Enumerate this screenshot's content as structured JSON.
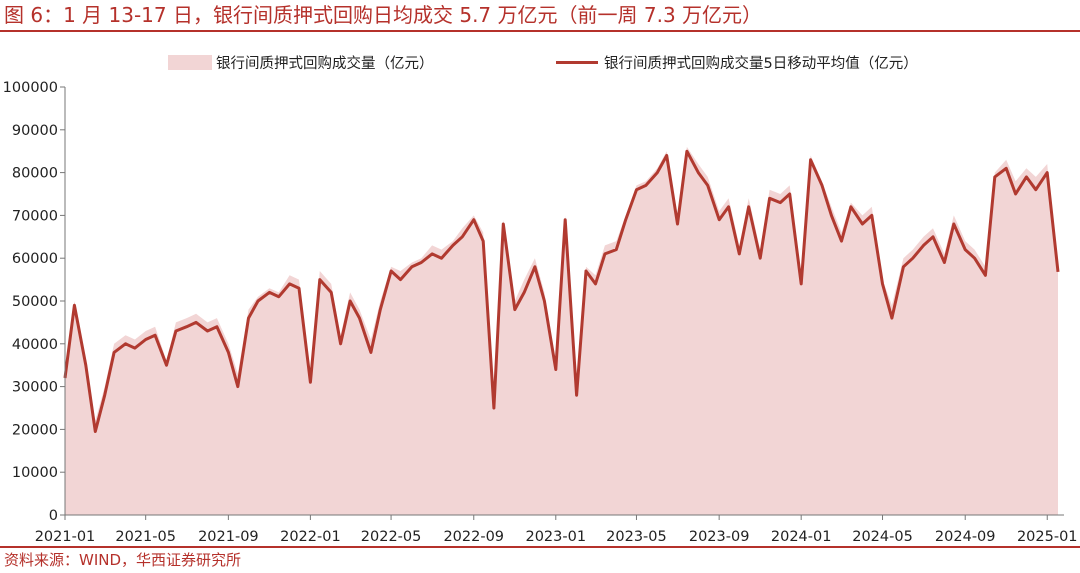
{
  "title": "图 6：1 月 13-17 日，银行间质押式回购日均成交 5.7 万亿元（前一周 7.3 万亿元）",
  "source": "资料来源：WIND，华西证券研究所",
  "colors": {
    "accent": "#b5312b",
    "area": "#f2d5d5",
    "line": "#b13a30"
  },
  "chart_data": {
    "type": "area",
    "title": "图 6：1 月 13-17 日，银行间质押式回购日均成交 5.7 万亿元（前一周 7.3 万亿元）",
    "xlabel": "",
    "ylabel": "",
    "ylim": [
      0,
      100000
    ],
    "yticks": [
      "0",
      "10000",
      "20000",
      "30000",
      "40000",
      "50000",
      "60000",
      "70000",
      "80000",
      "90000",
      "100000"
    ],
    "xticks": [
      "2021-01",
      "2021-05",
      "2021-09",
      "2022-01",
      "2022-05",
      "2022-09",
      "2023-01",
      "2023-05",
      "2023-09",
      "2024-01",
      "2024-05",
      "2024-09",
      "2025-01"
    ],
    "grid": false,
    "legend_position": "top",
    "unit": "亿元",
    "series": [
      {
        "name": "银行间质押式回购成交量（亿元）",
        "style": "area",
        "x": [
          "2021-01",
          "2021-01-15",
          "2021-02",
          "2021-02-15",
          "2021-03",
          "2021-03-15",
          "2021-04",
          "2021-04-15",
          "2021-05",
          "2021-05-15",
          "2021-06",
          "2021-06-15",
          "2021-07",
          "2021-07-15",
          "2021-08",
          "2021-08-15",
          "2021-09",
          "2021-09-15",
          "2021-10",
          "2021-10-15",
          "2021-11",
          "2021-11-15",
          "2021-12",
          "2021-12-15",
          "2022-01",
          "2022-01-15",
          "2022-02",
          "2022-02-15",
          "2022-03",
          "2022-03-15",
          "2022-04",
          "2022-04-15",
          "2022-05",
          "2022-05-15",
          "2022-06",
          "2022-06-15",
          "2022-07",
          "2022-07-15",
          "2022-08",
          "2022-08-15",
          "2022-09",
          "2022-09-15",
          "2022-10",
          "2022-10-15",
          "2022-11",
          "2022-11-15",
          "2022-12",
          "2022-12-15",
          "2023-01",
          "2023-01-15",
          "2023-02",
          "2023-02-15",
          "2023-03",
          "2023-03-15",
          "2023-04",
          "2023-04-15",
          "2023-05",
          "2023-05-15",
          "2023-06",
          "2023-06-15",
          "2023-07",
          "2023-07-15",
          "2023-08",
          "2023-08-15",
          "2023-09",
          "2023-09-15",
          "2023-10",
          "2023-10-15",
          "2023-11",
          "2023-11-15",
          "2023-12",
          "2023-12-15",
          "2024-01",
          "2024-01-15",
          "2024-02",
          "2024-02-15",
          "2024-03",
          "2024-03-15",
          "2024-04",
          "2024-04-15",
          "2024-05",
          "2024-05-15",
          "2024-06",
          "2024-06-15",
          "2024-07",
          "2024-07-15",
          "2024-08",
          "2024-08-15",
          "2024-09",
          "2024-09-15",
          "2024-10",
          "2024-10-15",
          "2024-11",
          "2024-11-15",
          "2024-12",
          "2024-12-15",
          "2025-01",
          "2025-01-17"
        ],
        "values": [
          34000,
          50000,
          36000,
          22000,
          30000,
          40000,
          42000,
          41000,
          43000,
          44000,
          36000,
          45000,
          46000,
          47000,
          45000,
          46000,
          40000,
          33000,
          48000,
          51000,
          53000,
          52000,
          56000,
          55000,
          33000,
          57000,
          54000,
          42000,
          52000,
          48000,
          41000,
          50000,
          58000,
          57000,
          59000,
          60000,
          63000,
          62000,
          64000,
          67000,
          70000,
          66000,
          27000,
          69000,
          50000,
          55000,
          60000,
          52000,
          35000,
          70000,
          30000,
          58000,
          56000,
          63000,
          64000,
          70000,
          77000,
          78000,
          81000,
          85000,
          70000,
          86000,
          82000,
          79000,
          71000,
          74000,
          63000,
          74000,
          62000,
          76000,
          75000,
          77000,
          56000,
          84000,
          78000,
          72000,
          66000,
          73000,
          70000,
          72000,
          55000,
          49000,
          60000,
          62000,
          65000,
          67000,
          61000,
          70000,
          64000,
          62000,
          58000,
          80000,
          83000,
          78000,
          81000,
          79000,
          82000,
          57000
        ]
      },
      {
        "name": "银行间质押式回购成交量5日移动平均值（亿元）",
        "style": "line",
        "x": [
          "2021-01",
          "2021-01-15",
          "2021-02",
          "2021-02-15",
          "2021-03",
          "2021-03-15",
          "2021-04",
          "2021-04-15",
          "2021-05",
          "2021-05-15",
          "2021-06",
          "2021-06-15",
          "2021-07",
          "2021-07-15",
          "2021-08",
          "2021-08-15",
          "2021-09",
          "2021-09-15",
          "2021-10",
          "2021-10-15",
          "2021-11",
          "2021-11-15",
          "2021-12",
          "2021-12-15",
          "2022-01",
          "2022-01-15",
          "2022-02",
          "2022-02-15",
          "2022-03",
          "2022-03-15",
          "2022-04",
          "2022-04-15",
          "2022-05",
          "2022-05-15",
          "2022-06",
          "2022-06-15",
          "2022-07",
          "2022-07-15",
          "2022-08",
          "2022-08-15",
          "2022-09",
          "2022-09-15",
          "2022-10",
          "2022-10-15",
          "2022-11",
          "2022-11-15",
          "2022-12",
          "2022-12-15",
          "2023-01",
          "2023-01-15",
          "2023-02",
          "2023-02-15",
          "2023-03",
          "2023-03-15",
          "2023-04",
          "2023-04-15",
          "2023-05",
          "2023-05-15",
          "2023-06",
          "2023-06-15",
          "2023-07",
          "2023-07-15",
          "2023-08",
          "2023-08-15",
          "2023-09",
          "2023-09-15",
          "2023-10",
          "2023-10-15",
          "2023-11",
          "2023-11-15",
          "2023-12",
          "2023-12-15",
          "2024-01",
          "2024-01-15",
          "2024-02",
          "2024-02-15",
          "2024-03",
          "2024-03-15",
          "2024-04",
          "2024-04-15",
          "2024-05",
          "2024-05-15",
          "2024-06",
          "2024-06-15",
          "2024-07",
          "2024-07-15",
          "2024-08",
          "2024-08-15",
          "2024-09",
          "2024-09-15",
          "2024-10",
          "2024-10-15",
          "2024-11",
          "2024-11-15",
          "2024-12",
          "2024-12-15",
          "2025-01",
          "2025-01-17"
        ],
        "values": [
          32000,
          49000,
          35000,
          19500,
          28000,
          38000,
          40000,
          39000,
          41000,
          42000,
          35000,
          43000,
          44000,
          45000,
          43000,
          44000,
          38000,
          30000,
          46000,
          50000,
          52000,
          51000,
          54000,
          53000,
          31000,
          55000,
          52000,
          40000,
          50000,
          46000,
          38000,
          48000,
          57000,
          55000,
          58000,
          59000,
          61000,
          60000,
          63000,
          65000,
          69000,
          64000,
          25000,
          68000,
          48000,
          52000,
          58000,
          50000,
          34000,
          69000,
          28000,
          57000,
          54000,
          61000,
          62000,
          69000,
          76000,
          77000,
          80000,
          84000,
          68000,
          85000,
          80000,
          77000,
          69000,
          72000,
          61000,
          72000,
          60000,
          74000,
          73000,
          75000,
          54000,
          83000,
          77000,
          70000,
          64000,
          72000,
          68000,
          70000,
          54000,
          46000,
          58000,
          60000,
          63000,
          65000,
          59000,
          68000,
          62000,
          60000,
          56000,
          79000,
          81000,
          75000,
          79000,
          76000,
          80000,
          56800
        ]
      }
    ]
  }
}
